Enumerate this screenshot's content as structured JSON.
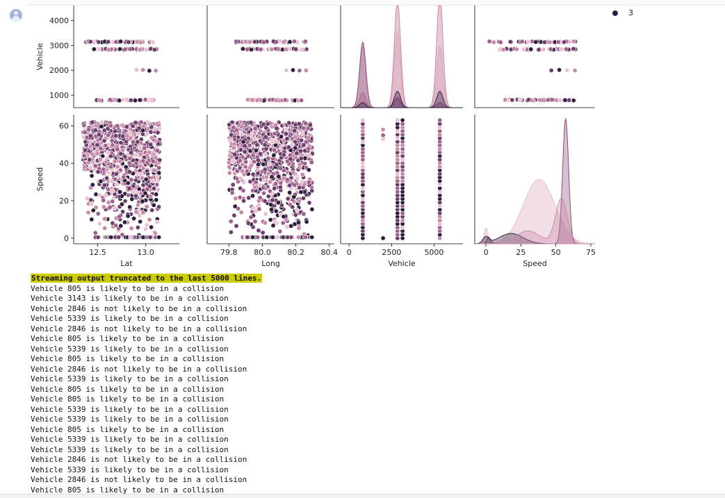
{
  "legend": {
    "label": "3"
  },
  "output": {
    "truncation_notice": "Streaming output truncated to the last 5000 lines.",
    "lines": [
      "Vehicle 805 is likely to be in a collision",
      "Vehicle 3143 is likely to be in a collision",
      "Vehicle 2846 is not likely to be in a collision",
      "Vehicle 5339 is likely to be in a collision",
      "Vehicle 2846 is not likely to be in a collision",
      "Vehicle 805 is likely to be in a collision",
      "Vehicle 5339 is likely to be in a collision",
      "Vehicle 805 is likely to be in a collision",
      "Vehicle 2846 is not likely to be in a collision",
      "Vehicle 5339 is likely to be in a collision",
      "Vehicle 805 is likely to be in a collision",
      "Vehicle 805 is likely to be in a collision",
      "Vehicle 5339 is likely to be in a collision",
      "Vehicle 5339 is likely to be in a collision",
      "Vehicle 805 is likely to be in a collision",
      "Vehicle 5339 is likely to be in a collision",
      "Vehicle 5339 is likely to be in a collision",
      "Vehicle 2846 is not likely to be in a collision",
      "Vehicle 5339 is likely to be in a collision",
      "Vehicle 2846 is not likely to be in a collision",
      "Vehicle 805 is likely to be in a collision"
    ]
  },
  "chart_data": {
    "type": "scatter",
    "variables": [
      "Vehicle",
      "Speed"
    ],
    "x_variables": [
      "Lat",
      "Long",
      "Vehicle",
      "Speed"
    ],
    "xlabels": [
      "Lat",
      "Long",
      "Vehicle",
      "Speed"
    ],
    "ylabels": [
      "Vehicle",
      "Speed"
    ],
    "xticks": {
      "Lat": [
        "12.5",
        "13.0"
      ],
      "Long": [
        "79.8",
        "80.0",
        "80.2",
        "80.4"
      ],
      "Vehicle": [
        "0",
        "2500",
        "5000"
      ],
      "Speed": [
        "0",
        "25",
        "50",
        "75"
      ]
    },
    "yticks": {
      "Vehicle": [
        "1000",
        "2000",
        "3000",
        "4000"
      ],
      "Speed": [
        "0",
        "20",
        "40",
        "60"
      ]
    },
    "xlim": {
      "Lat": [
        12.25,
        13.35
      ],
      "Long": [
        79.67,
        80.43
      ],
      "Vehicle": [
        -500,
        6700
      ],
      "Speed": [
        -8,
        78
      ]
    },
    "ylim": {
      "Vehicle": [
        500,
        4600
      ],
      "Speed": [
        -3,
        66
      ]
    },
    "vehicle_values": [
      805,
      2000,
      2846,
      3143
    ],
    "kde_vehicle_peaks": [
      805,
      2846,
      5339
    ],
    "hue_colors": [
      "#2d1e3e",
      "#6b3e6b",
      "#a0608c",
      "#c98aa6",
      "#e8c2d0"
    ],
    "legend_entry": "3",
    "grid": false
  }
}
